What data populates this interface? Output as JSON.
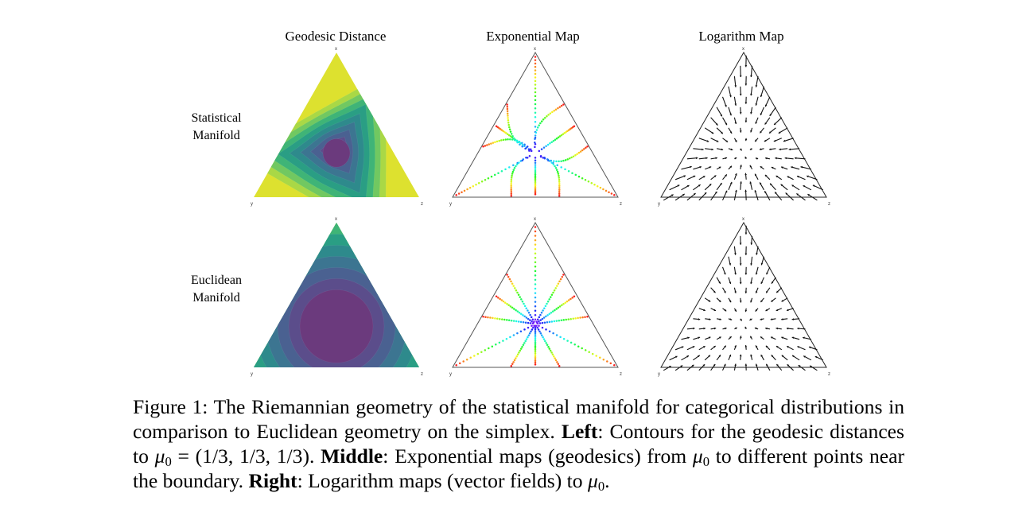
{
  "figure": {
    "column_titles": [
      "Geodesic Distance",
      "Exponential Map",
      "Logarithm Map"
    ],
    "row_labels": [
      {
        "line1": "Statistical",
        "line2": "Manifold"
      },
      {
        "line1": "Euclidean",
        "line2": "Manifold"
      }
    ],
    "vertex_labels": {
      "top": "x",
      "left": "y",
      "right": "z"
    },
    "colors": {
      "viridis": [
        "#6b3a7d",
        "#5b4d8b",
        "#4a6191",
        "#3c7591",
        "#2e8a8c",
        "#2a9e84",
        "#3fb477",
        "#71c861",
        "#a9d846",
        "#dde12f"
      ],
      "edge": "#555555",
      "arrow": "#111111"
    },
    "geodesic_levels": 9
  },
  "caption": {
    "figure_label": "Figure 1:",
    "text_intro": "The Riemannian geometry of the statistical manifold for categorical distributions in comparison to Euclidean geometry on the simplex.",
    "left_label": "Left",
    "left_text": ": Contours for the geodesic distances to",
    "mu_symbol": "μ",
    "mu_sub": "0",
    "mu_value": " = (1/3, 1/3, 1/3).",
    "middle_label": "Middle",
    "middle_text": ": Exponential maps (geodesics) from",
    "middle_text2": "to different points near the boundary.",
    "right_label": "Right",
    "right_text": ": Logarithm maps (vector fields) to",
    "end": "."
  }
}
